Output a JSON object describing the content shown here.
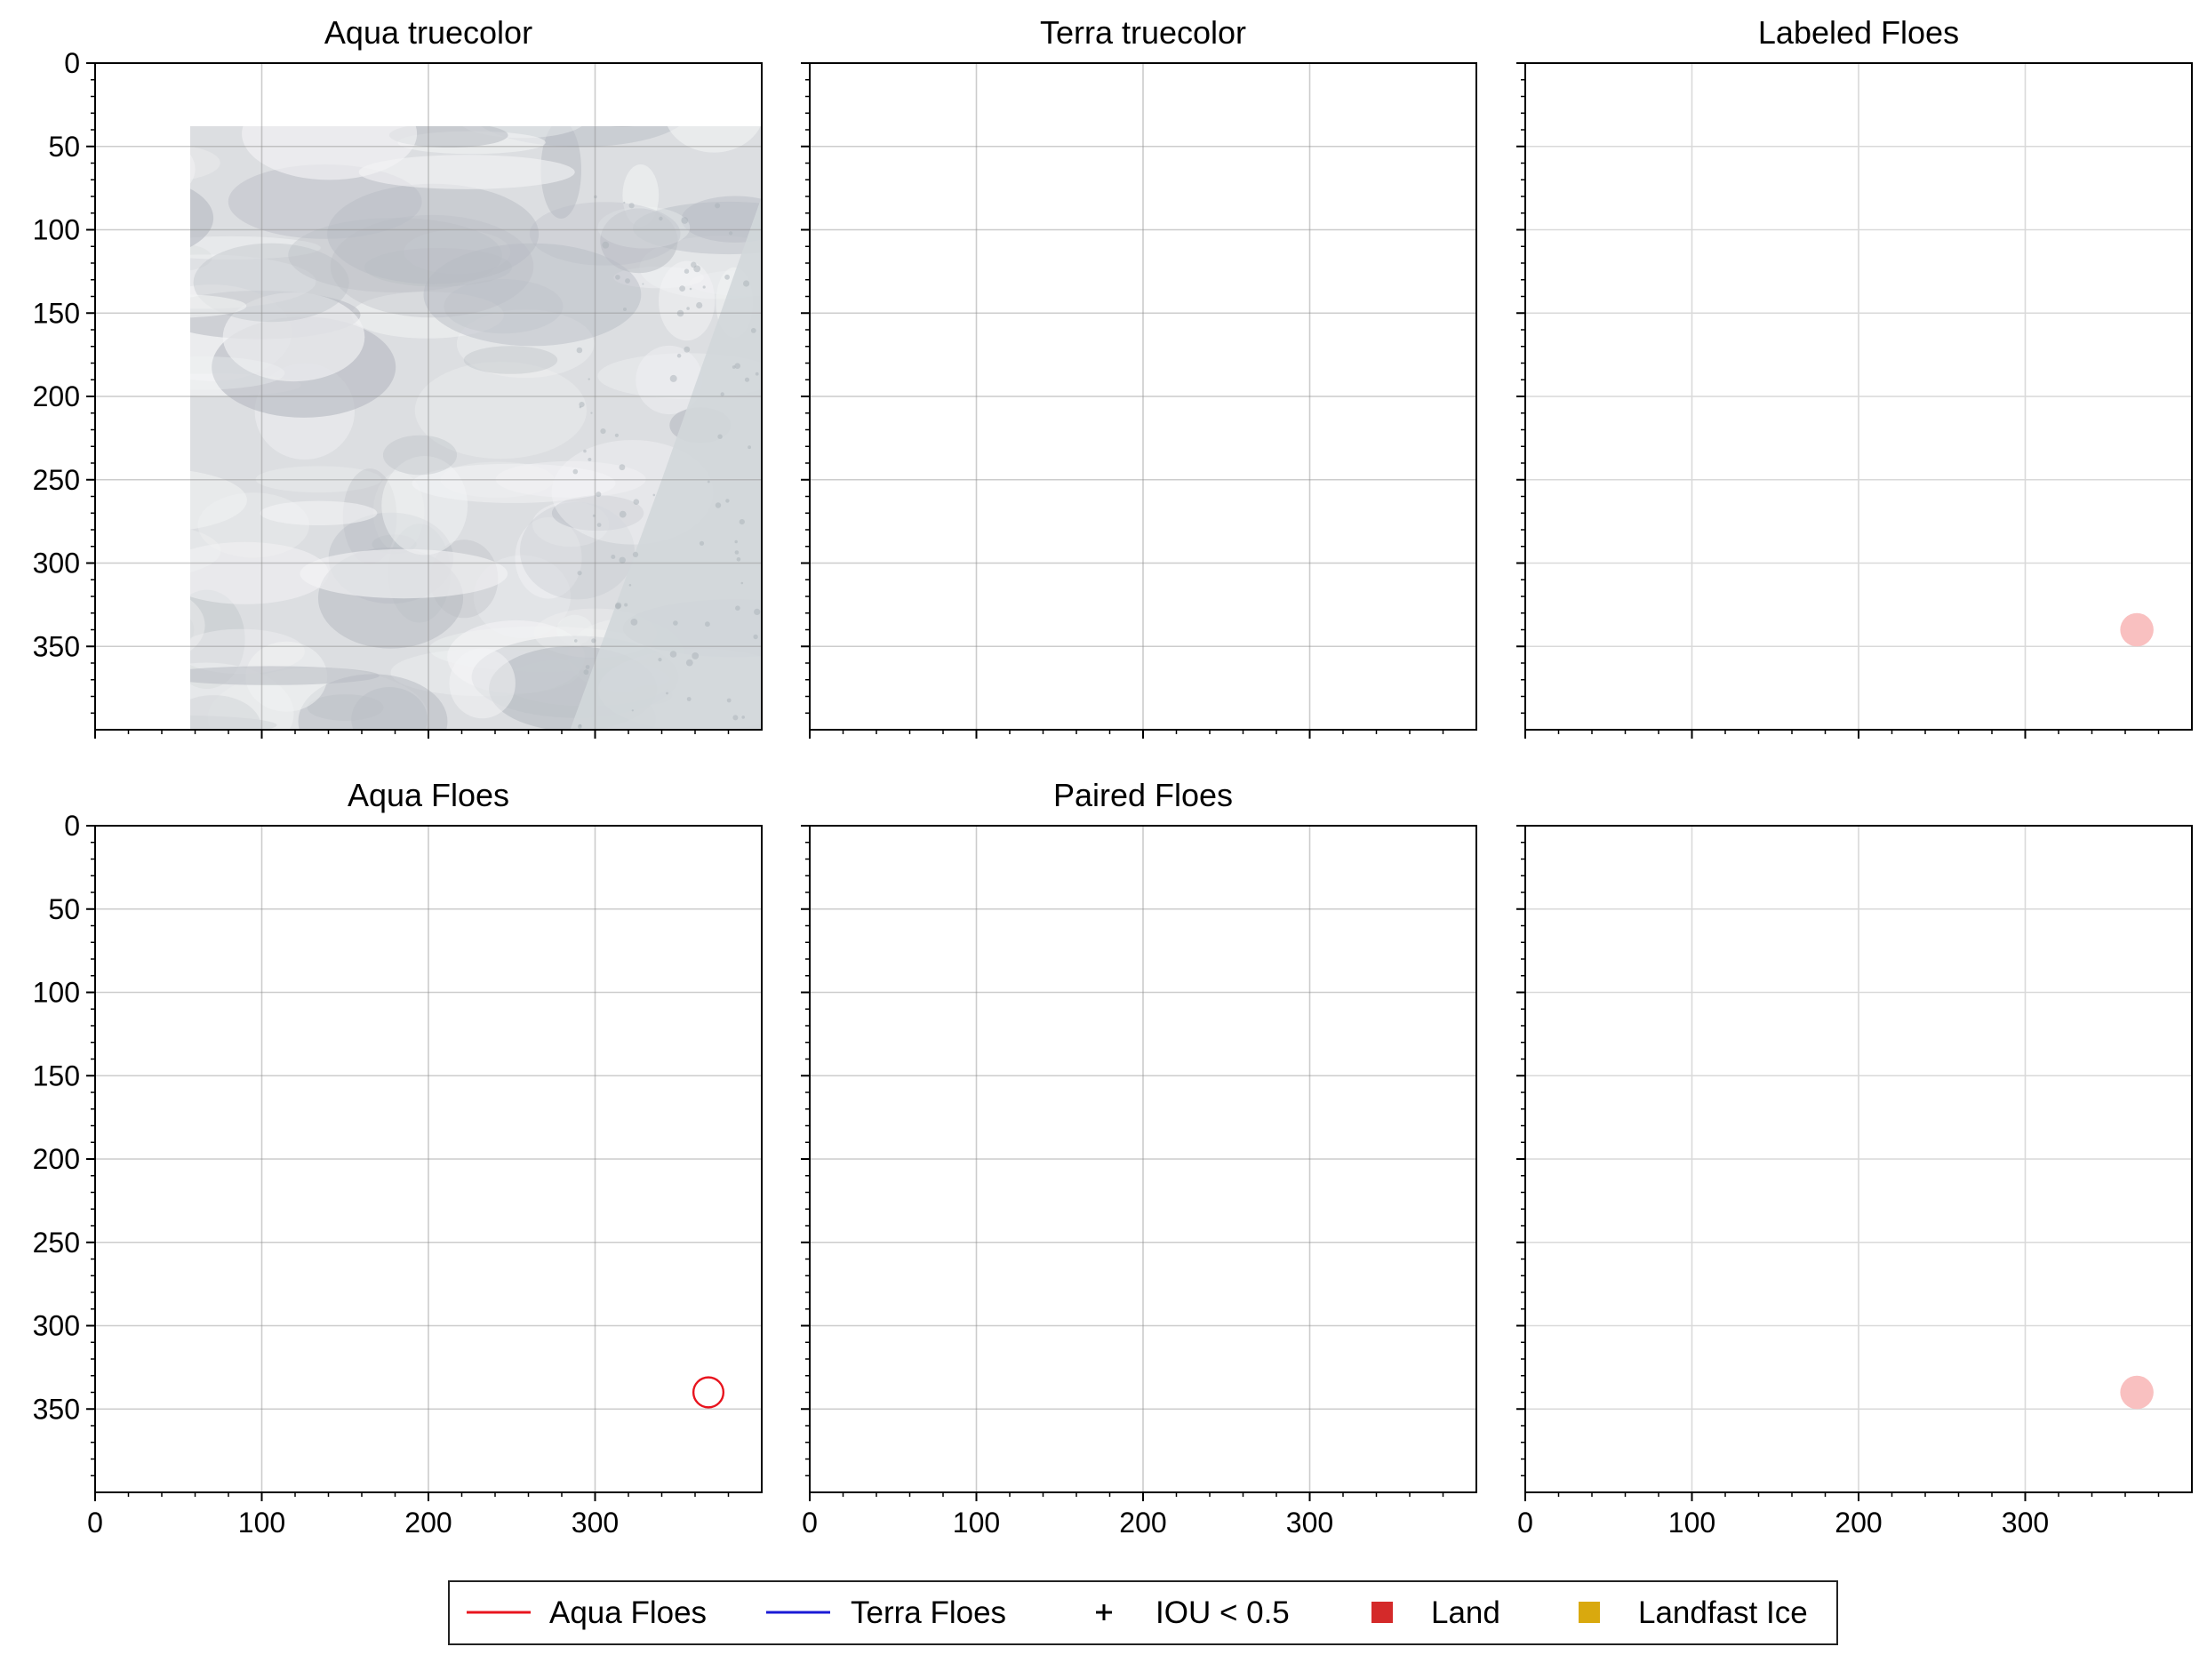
{
  "chart_data": [
    {
      "type": "heatmap",
      "panel": "top-left",
      "title": "Aqua truecolor",
      "image": "aqua-truecolor",
      "xlim": [
        0,
        400
      ],
      "ylim": [
        400,
        0
      ],
      "xticks": [
        0,
        100,
        200,
        300
      ],
      "yticks": [
        0,
        50,
        100,
        150,
        200,
        250,
        300,
        350
      ],
      "x_tick_labels_visible": false,
      "y_tick_labels_visible": true,
      "grid": true,
      "swath_edge": [
        [
          400,
          80
        ],
        [
          340,
          250
        ],
        [
          285,
          400
        ]
      ]
    },
    {
      "type": "heatmap",
      "panel": "top-center",
      "title": "Terra truecolor",
      "image": "terra-truecolor",
      "xlim": [
        0,
        400
      ],
      "ylim": [
        400,
        0
      ],
      "xticks": [
        0,
        100,
        200,
        300
      ],
      "yticks": [
        0,
        50,
        100,
        150,
        200,
        250,
        300,
        350
      ],
      "x_tick_labels_visible": false,
      "y_tick_labels_visible": false,
      "grid": true
    },
    {
      "type": "heatmap",
      "panel": "top-right",
      "title": "Labeled Floes",
      "image": "labeled-floes",
      "xlim": [
        0,
        400
      ],
      "ylim": [
        400,
        0
      ],
      "xticks": [
        0,
        100,
        200,
        300
      ],
      "yticks": [
        0,
        50,
        100,
        150,
        200,
        250,
        300,
        350
      ],
      "x_tick_labels_visible": false,
      "y_tick_labels_visible": false,
      "grid": true,
      "floes": [
        {
          "cx": 367,
          "cy": 340,
          "r": 10,
          "color": "#f9c0c0"
        }
      ]
    },
    {
      "type": "heatmap",
      "panel": "bottom-left",
      "title": "Aqua Floes",
      "image": "aqua-truecolor",
      "xlim": [
        0,
        400
      ],
      "ylim": [
        400,
        0
      ],
      "xticks": [
        0,
        100,
        200,
        300
      ],
      "yticks": [
        0,
        50,
        100,
        150,
        200,
        250,
        300,
        350
      ],
      "x_tick_labels_visible": true,
      "y_tick_labels_visible": true,
      "grid": true,
      "swath_edge": [
        [
          400,
          80
        ],
        [
          340,
          250
        ],
        [
          285,
          400
        ]
      ],
      "outlines": [
        {
          "cx": 368,
          "cy": 340,
          "r": 9,
          "color": "#e8141e"
        }
      ]
    },
    {
      "type": "heatmap",
      "panel": "bottom-center",
      "title": "Paired Floes",
      "image": "terra-truecolor",
      "xlim": [
        0,
        400
      ],
      "ylim": [
        400,
        0
      ],
      "xticks": [
        0,
        100,
        200,
        300
      ],
      "yticks": [
        0,
        50,
        100,
        150,
        200,
        250,
        300,
        350
      ],
      "x_tick_labels_visible": true,
      "y_tick_labels_visible": false,
      "grid": true
    },
    {
      "type": "heatmap",
      "panel": "bottom-right",
      "title": "",
      "image": "labeled-floes",
      "xlim": [
        0,
        400
      ],
      "ylim": [
        400,
        0
      ],
      "xticks": [
        0,
        100,
        200,
        300
      ],
      "yticks": [
        0,
        50,
        100,
        150,
        200,
        250,
        300,
        350
      ],
      "x_tick_labels_visible": true,
      "y_tick_labels_visible": false,
      "grid": true,
      "floes": [
        {
          "cx": 367,
          "cy": 340,
          "r": 10,
          "color": "#f9c0c0"
        }
      ]
    }
  ],
  "legend": {
    "placement": "bottom-center",
    "items": [
      {
        "label": "Aqua Floes",
        "marker": "line",
        "color": "#e8141e"
      },
      {
        "label": "Terra Floes",
        "marker": "line",
        "color": "#1a1ad6"
      },
      {
        "label": "IOU < 0.5",
        "marker": "plus",
        "color": "#000000"
      },
      {
        "label": "Land",
        "marker": "square",
        "color": "#d42a2a"
      },
      {
        "label": "Landfast Ice",
        "marker": "square",
        "color": "#d9a90e"
      }
    ]
  },
  "colors": {
    "cloud_light": "#f3f4f5",
    "cloud_mid": "#dcdee1",
    "cloud_dark": "#b8bcc3",
    "grid": "#8f8f8f"
  }
}
